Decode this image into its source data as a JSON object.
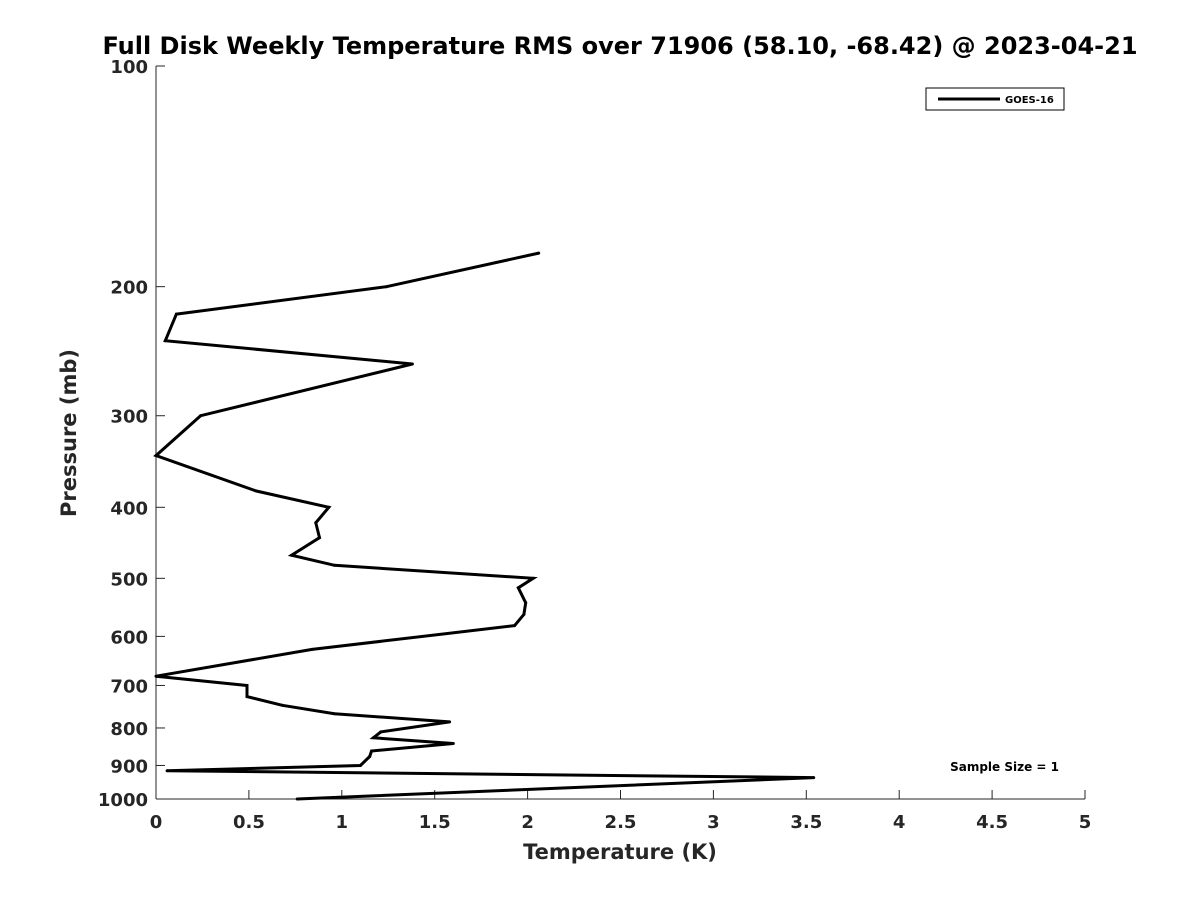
{
  "chart_data": {
    "type": "line",
    "title": "Full Disk Weekly Temperature RMS over 71906 (58.10, -68.42) @ 2023-04-21",
    "xlabel": "Temperature (K)",
    "ylabel": "Pressure (mb)",
    "xlim": [
      0,
      5
    ],
    "ylim": [
      100,
      1000
    ],
    "y_scale": "log",
    "y_reversed": true,
    "x_ticks": [
      0,
      0.5,
      1,
      1.5,
      2,
      2.5,
      3,
      3.5,
      4,
      4.5,
      5
    ],
    "x_tick_labels": [
      "0",
      "0.5",
      "1",
      "1.5",
      "2",
      "2.5",
      "3",
      "3.5",
      "4",
      "4.5",
      "5"
    ],
    "y_ticks": [
      100,
      200,
      300,
      400,
      500,
      600,
      700,
      800,
      900,
      1000
    ],
    "y_tick_labels": [
      "100",
      "200",
      "300",
      "400",
      "500",
      "600",
      "700",
      "800",
      "900",
      "1000"
    ],
    "grid": false,
    "legend_position": "top-right",
    "annotation": "Sample Size = 1",
    "series": [
      {
        "name": "GOES-16",
        "color": "#000000",
        "points": [
          {
            "x": 2.06,
            "p": 180
          },
          {
            "x": 1.24,
            "p": 200
          },
          {
            "x": 0.11,
            "p": 218
          },
          {
            "x": 0.05,
            "p": 237
          },
          {
            "x": 1.38,
            "p": 255
          },
          {
            "x": 0.24,
            "p": 300
          },
          {
            "x": 0.0,
            "p": 340
          },
          {
            "x": 0.54,
            "p": 380
          },
          {
            "x": 0.93,
            "p": 400
          },
          {
            "x": 0.86,
            "p": 420
          },
          {
            "x": 0.88,
            "p": 440
          },
          {
            "x": 0.73,
            "p": 465
          },
          {
            "x": 0.96,
            "p": 480
          },
          {
            "x": 2.03,
            "p": 500
          },
          {
            "x": 1.95,
            "p": 515
          },
          {
            "x": 1.99,
            "p": 540
          },
          {
            "x": 1.98,
            "p": 560
          },
          {
            "x": 1.93,
            "p": 580
          },
          {
            "x": 0.84,
            "p": 625
          },
          {
            "x": 0.0,
            "p": 680
          },
          {
            "x": 0.49,
            "p": 700
          },
          {
            "x": 0.49,
            "p": 725
          },
          {
            "x": 0.68,
            "p": 745
          },
          {
            "x": 0.96,
            "p": 765
          },
          {
            "x": 1.58,
            "p": 785
          },
          {
            "x": 1.21,
            "p": 810
          },
          {
            "x": 1.17,
            "p": 825
          },
          {
            "x": 1.6,
            "p": 840
          },
          {
            "x": 1.16,
            "p": 860
          },
          {
            "x": 1.15,
            "p": 875
          },
          {
            "x": 1.1,
            "p": 900
          },
          {
            "x": 0.06,
            "p": 915
          },
          {
            "x": 3.54,
            "p": 935
          },
          {
            "x": 0.76,
            "p": 1000
          }
        ]
      }
    ]
  }
}
